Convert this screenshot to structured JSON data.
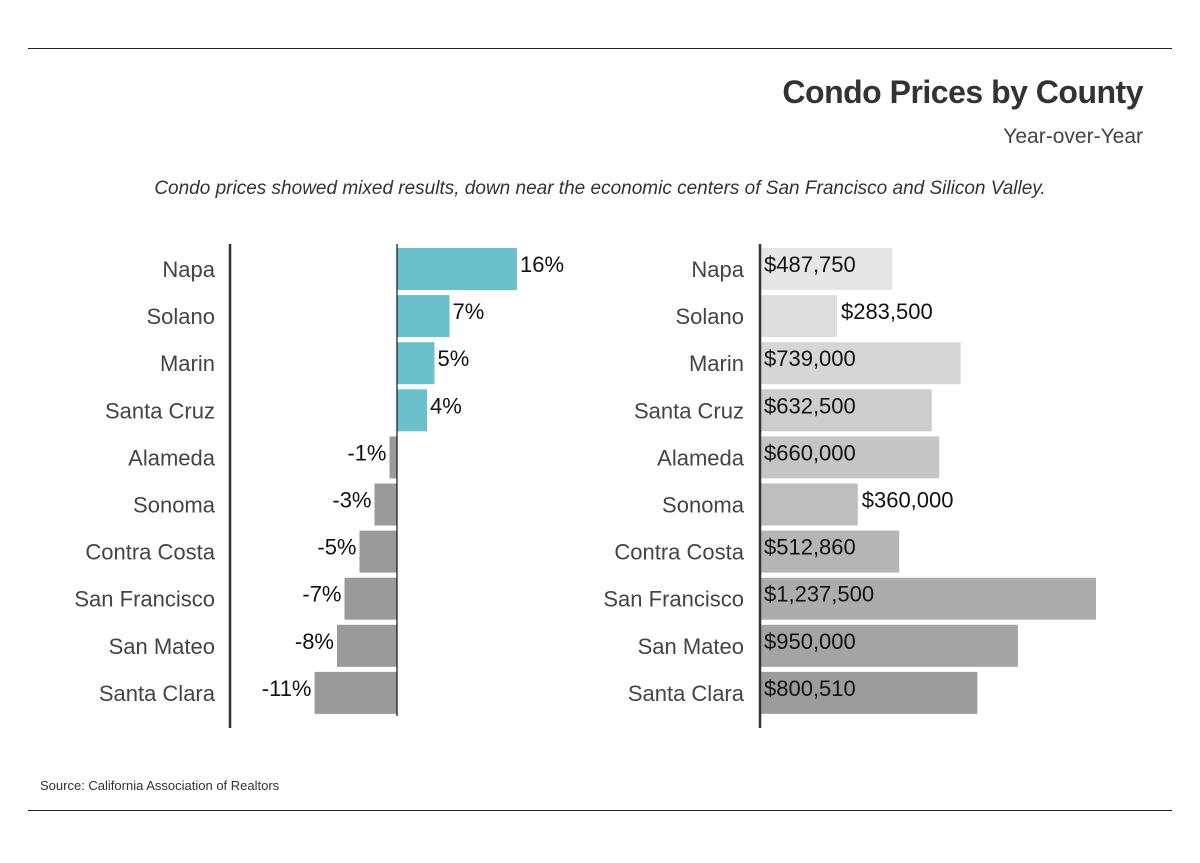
{
  "header": {
    "title": "Condo Prices by County",
    "subtitle": "Year-over-Year",
    "note": "Condo prices showed mixed results, down near the economic centers of San Francisco and Silicon Valley."
  },
  "footer": {
    "source": "Source:  California Association of Realtors"
  },
  "colors": {
    "positive_bar": "#6ac1cb",
    "negative_bar": "#9a9a9a",
    "axis": "#333333",
    "label_text": "#444444",
    "value_text": "#111111",
    "price_bar_light": "#e6e6e6",
    "price_bar_dark": "#9c9c9c"
  },
  "chart_data": [
    {
      "type": "bar",
      "orientation": "horizontal",
      "categories": [
        "Napa",
        "Solano",
        "Marin",
        "Santa Cruz",
        "Alameda",
        "Sonoma",
        "Contra Costa",
        "San Francisco",
        "San Mateo",
        "Santa Clara"
      ],
      "values": [
        16,
        7,
        5,
        4,
        -1,
        -3,
        -5,
        -7,
        -8,
        -11
      ],
      "value_labels": [
        "16%",
        "7%",
        "5%",
        "4%",
        "-1%",
        "-3%",
        "-5%",
        "-7%",
        "-8%",
        "-11%"
      ],
      "unit": "%",
      "xlim": [
        -22,
        22
      ],
      "grid": false
    },
    {
      "type": "bar",
      "orientation": "horizontal",
      "categories": [
        "Napa",
        "Solano",
        "Marin",
        "Santa Cruz",
        "Alameda",
        "Sonoma",
        "Contra Costa",
        "San Francisco",
        "San Mateo",
        "Santa Clara"
      ],
      "values": [
        487750,
        283500,
        739000,
        632500,
        660000,
        360000,
        512860,
        1237500,
        950000,
        800510
      ],
      "value_labels": [
        "$487,750",
        "$283,500",
        "$739,000",
        "$632,500",
        "$660,000",
        "$360,000",
        "$512,860",
        "$1,237,500",
        "$950,000",
        "$800,510"
      ],
      "unit": "$",
      "xlim": [
        0,
        1300000
      ],
      "grid": false
    }
  ]
}
